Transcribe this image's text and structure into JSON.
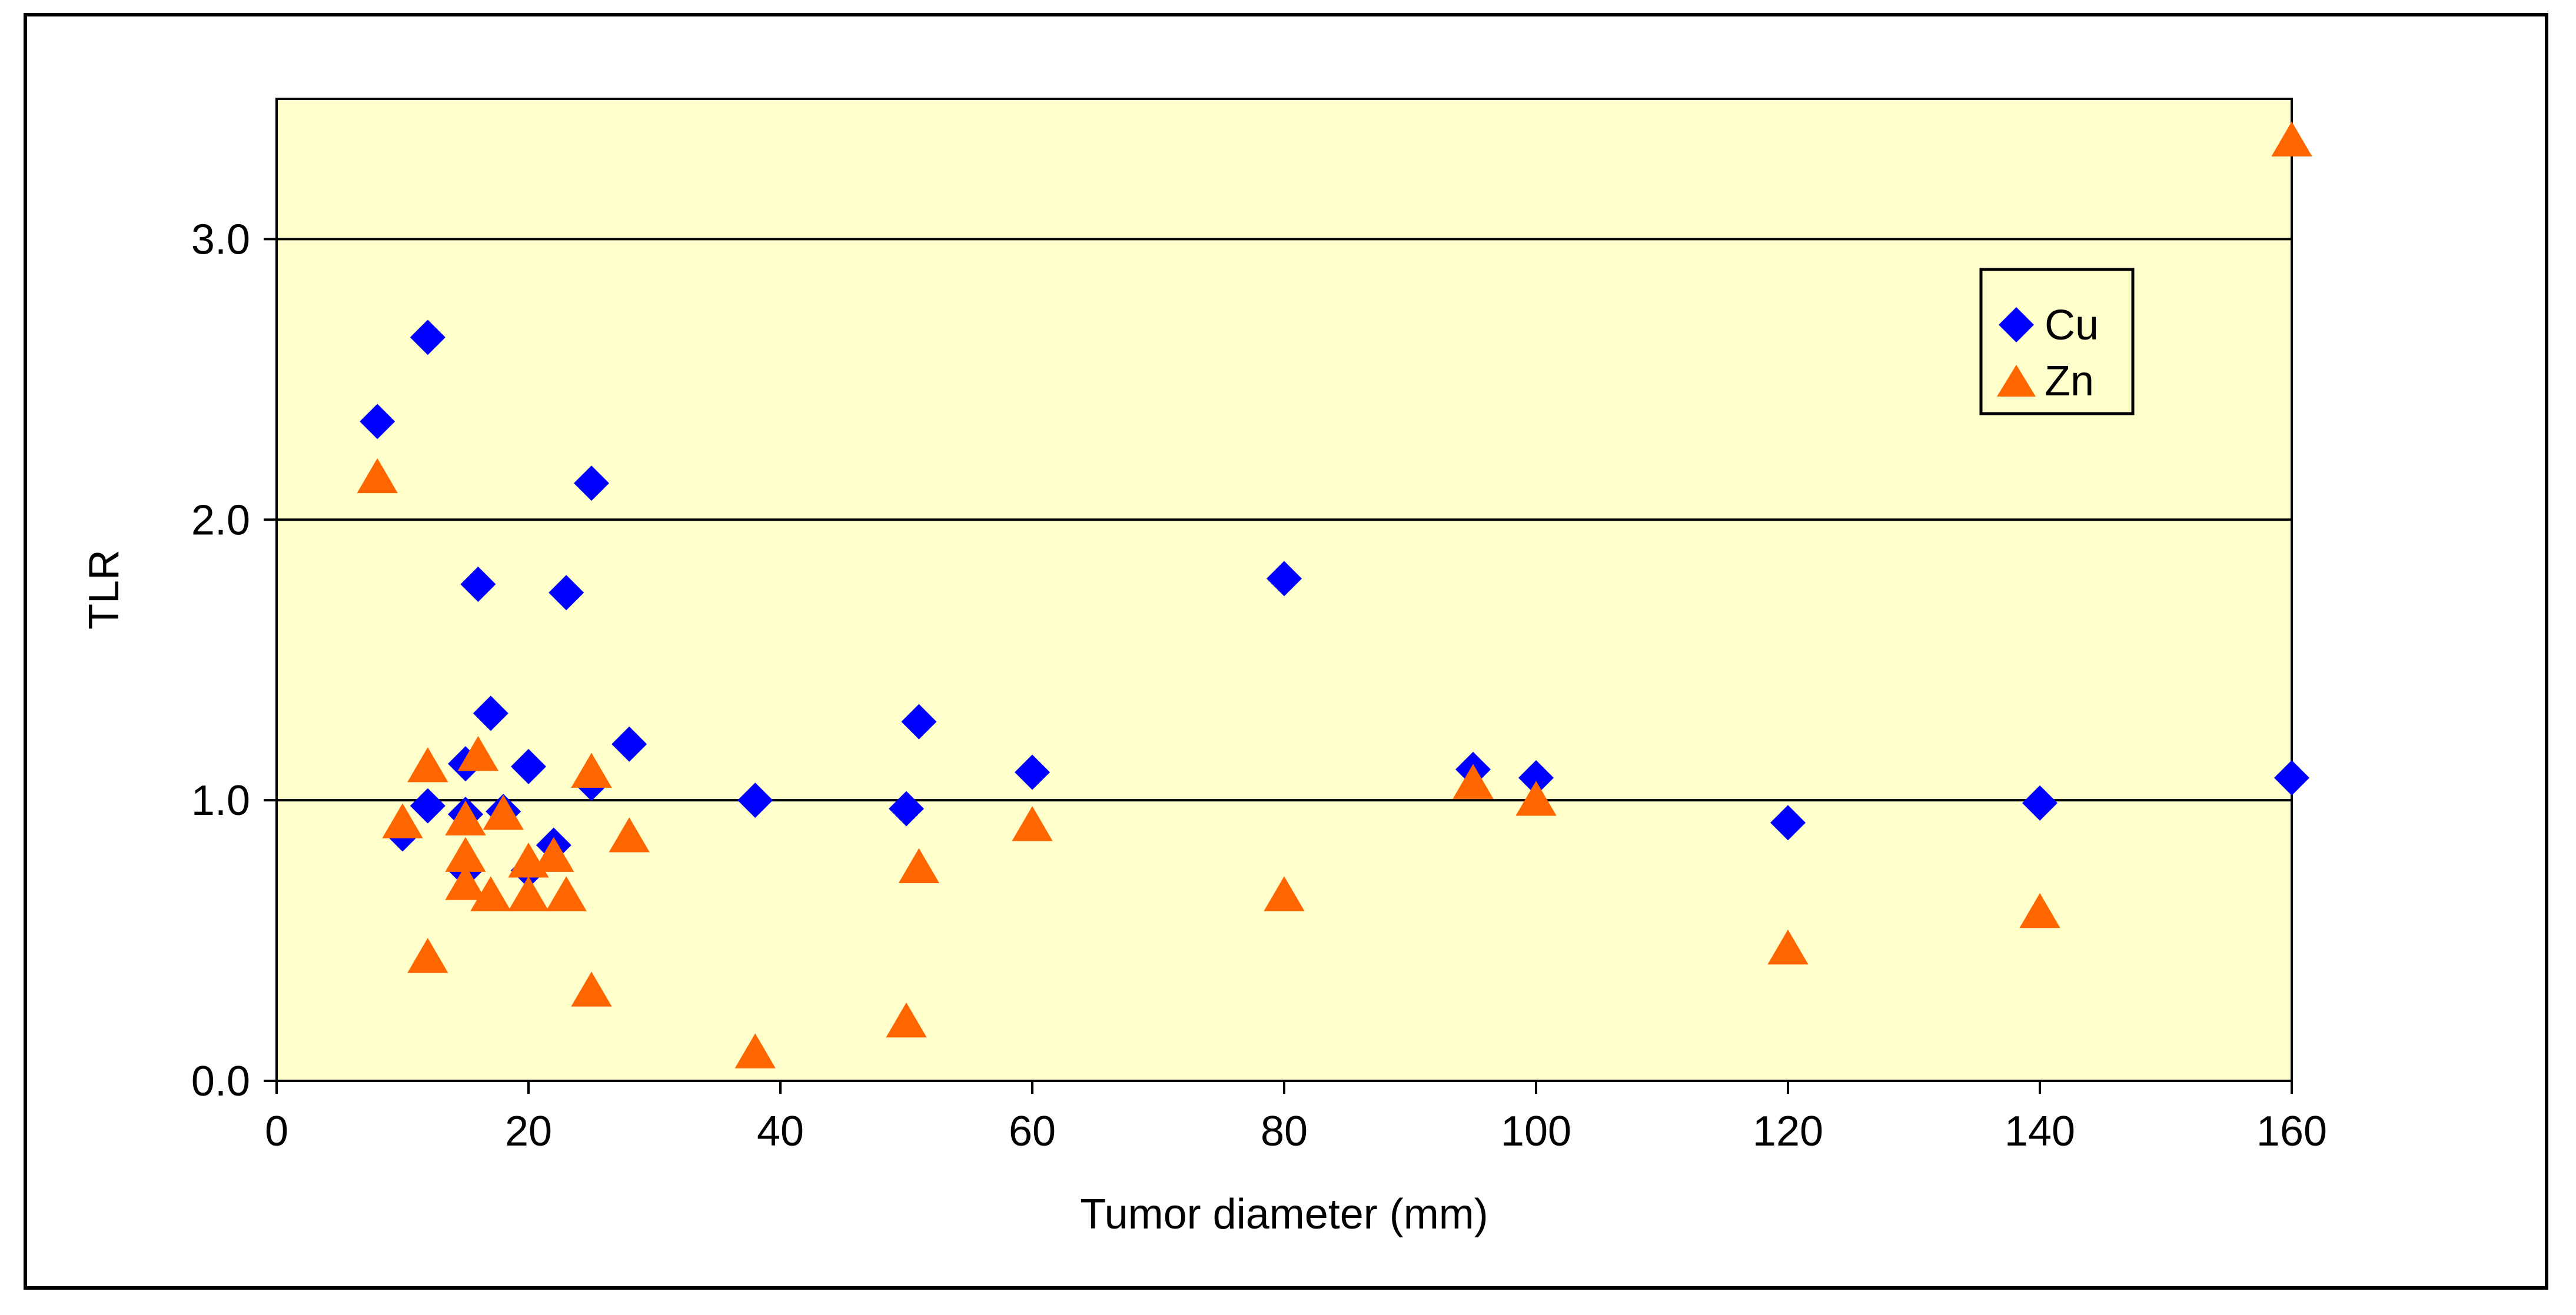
{
  "chart_data": {
    "type": "scatter",
    "title": "",
    "xlabel": "Tumor diameter (mm)",
    "ylabel": "TLR",
    "xlim": [
      0,
      160
    ],
    "ylim": [
      0,
      3.5
    ],
    "x_ticks": [
      0,
      20,
      40,
      60,
      80,
      100,
      120,
      140,
      160
    ],
    "x_tick_labels": [
      "0",
      "20",
      "40",
      "60",
      "80",
      "100",
      "120",
      "140",
      "160"
    ],
    "y_ticks": [
      0,
      1,
      2,
      3
    ],
    "y_tick_labels": [
      "0.0",
      "1.0",
      "2.0",
      "3.0"
    ],
    "grid": "horizontal at 1.0, 2.0, 3.0",
    "plot_background": "#FFFFCC",
    "legend_position": "upper-right",
    "series": [
      {
        "name": "Cu",
        "marker": "diamond",
        "color": "#0000FF",
        "points": [
          [
            8,
            2.35
          ],
          [
            10,
            0.88
          ],
          [
            12,
            2.65
          ],
          [
            12,
            0.98
          ],
          [
            15,
            1.13
          ],
          [
            15,
            0.95
          ],
          [
            15,
            0.75
          ],
          [
            16,
            1.77
          ],
          [
            17,
            1.31
          ],
          [
            18,
            0.96
          ],
          [
            20,
            1.12
          ],
          [
            20,
            0.75
          ],
          [
            22,
            0.84
          ],
          [
            23,
            1.74
          ],
          [
            25,
            2.13
          ],
          [
            25,
            1.06
          ],
          [
            28,
            1.2
          ],
          [
            38,
            1.0
          ],
          [
            50,
            0.97
          ],
          [
            51,
            1.28
          ],
          [
            60,
            1.1
          ],
          [
            80,
            1.79
          ],
          [
            95,
            1.11
          ],
          [
            100,
            1.08
          ],
          [
            120,
            0.92
          ],
          [
            140,
            0.99
          ],
          [
            160,
            1.08
          ]
        ]
      },
      {
        "name": "Zn",
        "marker": "triangle",
        "color": "#FF6600",
        "points": [
          [
            8,
            2.15
          ],
          [
            10,
            0.92
          ],
          [
            12,
            1.12
          ],
          [
            12,
            0.44
          ],
          [
            15,
            0.93
          ],
          [
            15,
            0.8
          ],
          [
            15,
            0.7
          ],
          [
            16,
            1.16
          ],
          [
            17,
            0.66
          ],
          [
            18,
            0.95
          ],
          [
            20,
            0.78
          ],
          [
            20,
            0.66
          ],
          [
            22,
            0.8
          ],
          [
            23,
            0.66
          ],
          [
            25,
            1.1
          ],
          [
            25,
            0.32
          ],
          [
            28,
            0.87
          ],
          [
            38,
            0.1
          ],
          [
            50,
            0.21
          ],
          [
            51,
            0.76
          ],
          [
            60,
            0.91
          ],
          [
            80,
            0.66
          ],
          [
            95,
            1.06
          ],
          [
            100,
            1.0
          ],
          [
            120,
            0.47
          ],
          [
            140,
            0.6
          ],
          [
            160,
            3.35
          ]
        ]
      }
    ]
  }
}
